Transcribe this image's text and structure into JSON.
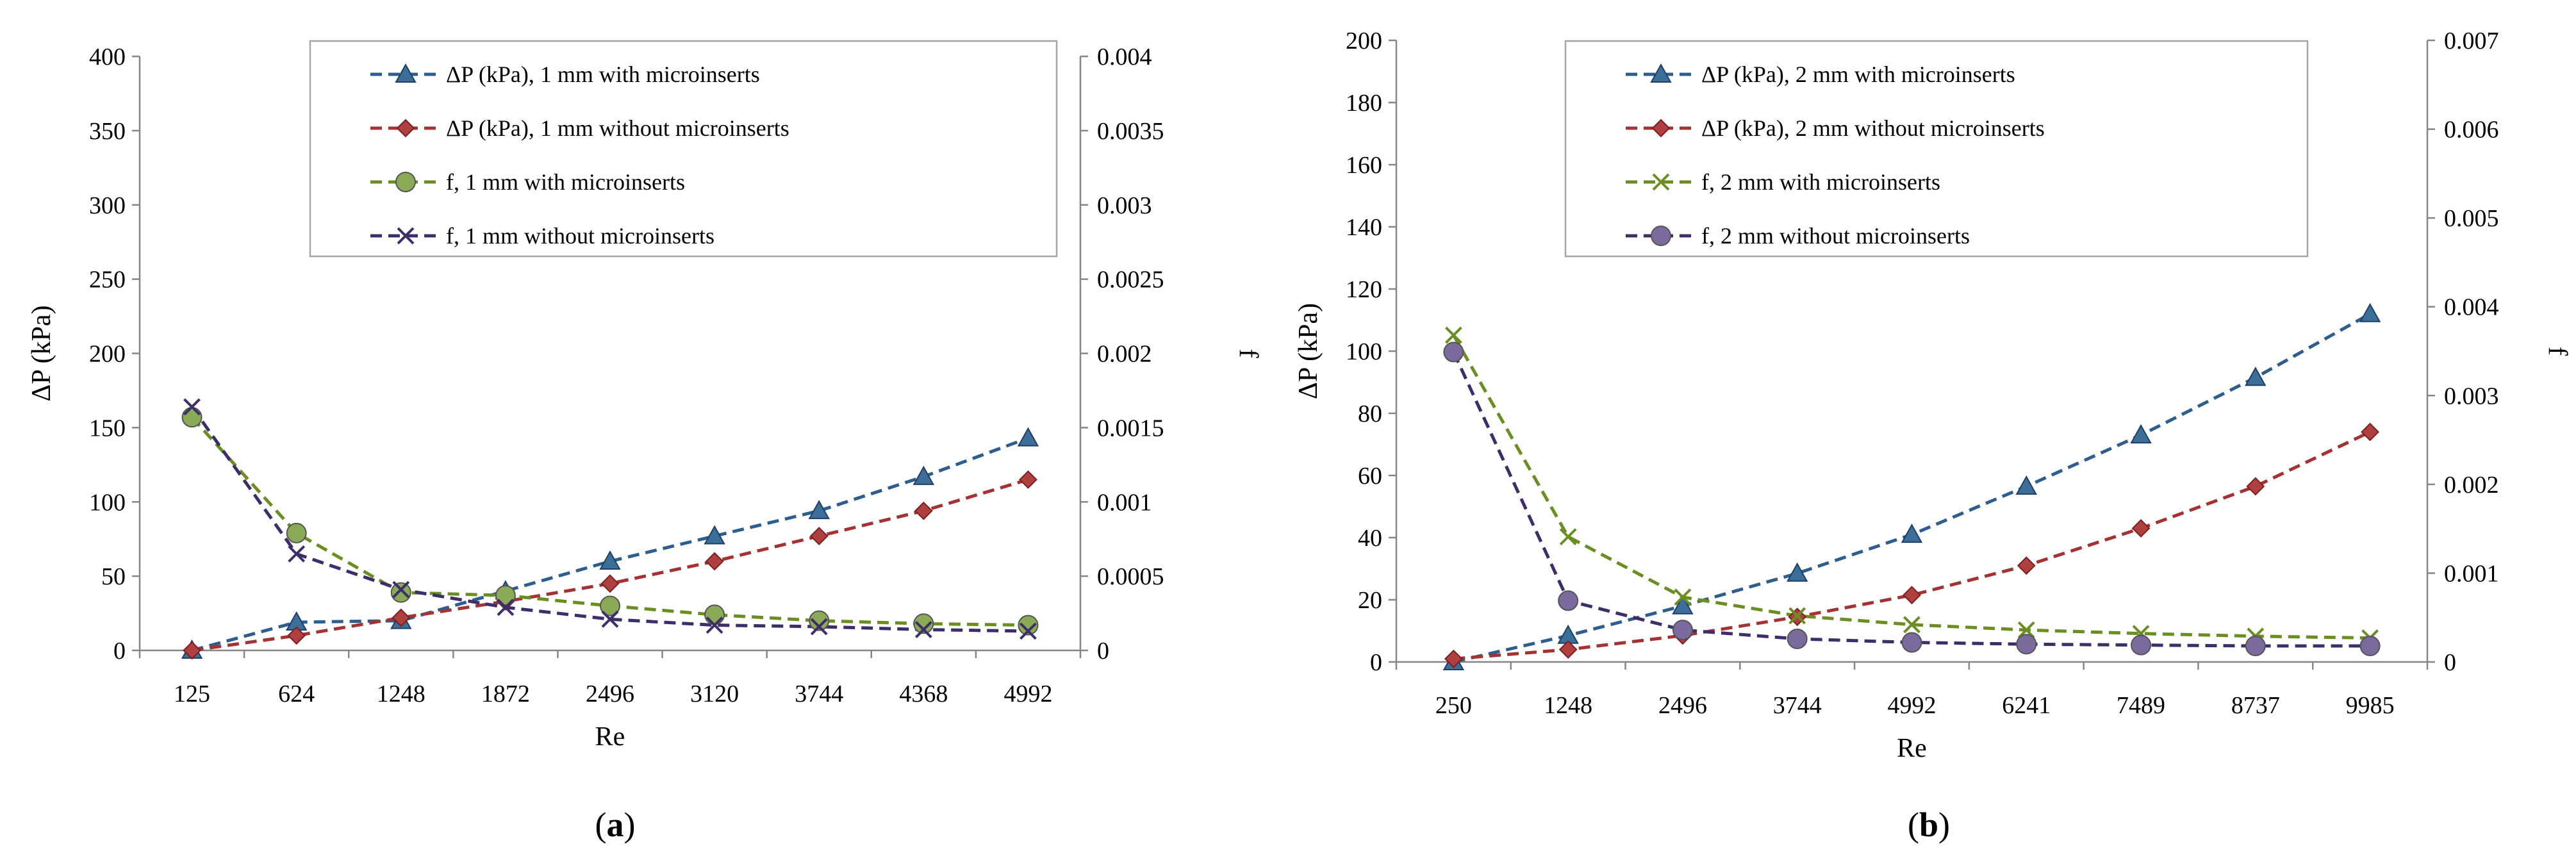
{
  "chart_data": [
    {
      "panel_label": "a",
      "type": "line",
      "xlabel": "Re",
      "ylabel_left": "ΔP (kPa)",
      "ylabel_right": "f",
      "categories": [
        "125",
        "624",
        "1248",
        "1872",
        "2496",
        "3120",
        "3744",
        "4368",
        "4992"
      ],
      "ylim_left": [
        0,
        400
      ],
      "yticks_left": [
        "0",
        "50",
        "100",
        "150",
        "200",
        "250",
        "300",
        "350",
        "400"
      ],
      "ylim_right": [
        0,
        0.004
      ],
      "yticks_right": [
        "0",
        "0.0005",
        "0.001",
        "0.0015",
        "0.002",
        "0.0025",
        "0.003",
        "0.0035",
        "0.004"
      ],
      "legend_position": "top",
      "grid": false,
      "series": [
        {
          "name": "ΔP (kPa), 1 mm with microinserts",
          "axis": "left",
          "marker": "triangle",
          "color": "#2E5E8E",
          "marker_color": "#3C6E9A",
          "values": [
            0,
            19,
            20,
            40,
            60,
            77,
            94,
            117,
            143
          ]
        },
        {
          "name": "ΔP (kPa), 1 mm without microinserts",
          "axis": "left",
          "marker": "diamond",
          "color": "#A53232",
          "marker_color": "#B04040",
          "values": [
            0,
            10,
            22,
            33,
            45,
            60,
            77,
            94,
            115
          ]
        },
        {
          "name": "f, 1 mm with microinserts",
          "axis": "right",
          "marker": "circle",
          "color": "#6B8E23",
          "marker_color": "#8AAA55",
          "values": [
            0.00157,
            0.00079,
            0.00039,
            0.00037,
            0.0003,
            0.00024,
            0.0002,
            0.00018,
            0.00017
          ]
        },
        {
          "name": "f, 1 mm without microinserts",
          "axis": "right",
          "marker": "x",
          "color": "#3E2D6B",
          "marker_color": "#3E2D6B",
          "values": [
            0.00164,
            0.00065,
            0.00041,
            0.00029,
            0.00021,
            0.00017,
            0.00016,
            0.00014,
            0.00013
          ]
        }
      ]
    },
    {
      "panel_label": "b",
      "type": "line",
      "xlabel": "Re",
      "ylabel_left": "ΔP (kPa)",
      "ylabel_right": "f",
      "categories": [
        "250",
        "1248",
        "2496",
        "3744",
        "4992",
        "6241",
        "7489",
        "8737",
        "9985"
      ],
      "ylim_left": [
        0,
        200
      ],
      "yticks_left": [
        "0",
        "20",
        "40",
        "60",
        "80",
        "100",
        "120",
        "140",
        "160",
        "180",
        "200"
      ],
      "ylim_right": [
        0,
        0.007
      ],
      "yticks_right": [
        "0",
        "0.001",
        "0.002",
        "0.003",
        "0.004",
        "0.005",
        "0.006",
        "0.007"
      ],
      "legend_position": "top",
      "grid": false,
      "series": [
        {
          "name": "ΔP (kPa), 2 mm with microinserts",
          "axis": "left",
          "marker": "triangle",
          "color": "#2E5E8E",
          "marker_color": "#3C6E9A",
          "values": [
            0,
            8.5,
            18,
            28.5,
            41,
            56.5,
            73,
            91.5,
            112
          ]
        },
        {
          "name": "ΔP (kPa), 2 mm without microinserts",
          "axis": "left",
          "marker": "diamond",
          "color": "#A53232",
          "marker_color": "#B04040",
          "values": [
            1,
            4,
            8.5,
            14.5,
            21.5,
            31,
            43,
            56.5,
            74
          ]
        },
        {
          "name": "f, 2 mm with microinserts",
          "axis": "right",
          "marker": "x",
          "color": "#6B8E23",
          "marker_color": "#6B8E23",
          "values": [
            0.00368,
            0.00141,
            0.00073,
            0.00052,
            0.00042,
            0.00036,
            0.00032,
            0.00029,
            0.00027
          ]
        },
        {
          "name": "f, 2 mm without microinserts",
          "axis": "right",
          "marker": "circle",
          "color": "#3E2D6B",
          "marker_color": "#7B6A9E",
          "values": [
            0.00349,
            0.00069,
            0.00036,
            0.00026,
            0.00022,
            0.0002,
            0.00019,
            0.00018,
            0.00018
          ]
        }
      ]
    }
  ]
}
